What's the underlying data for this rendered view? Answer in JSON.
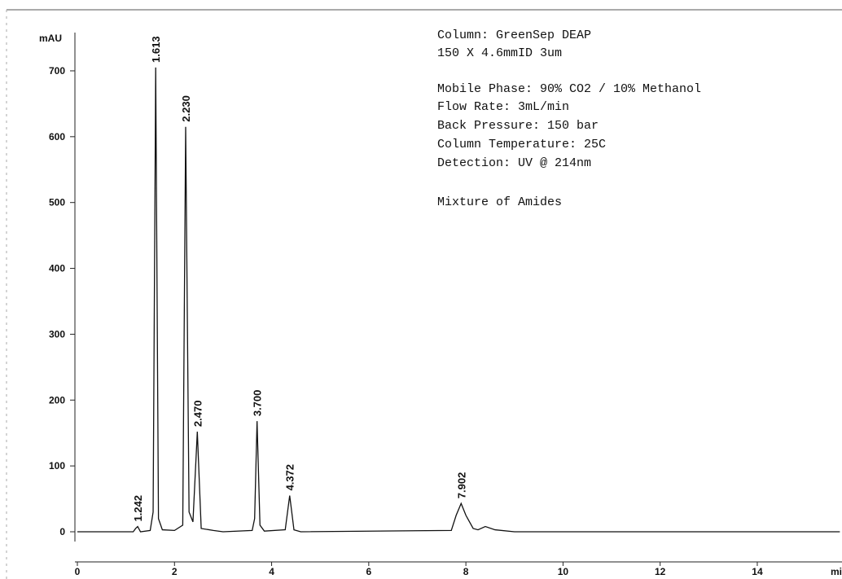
{
  "chart_data": {
    "type": "line",
    "ylabel": "mAU",
    "xlabel": "mi",
    "color": "#111111",
    "x": [
      0,
      1.15,
      1.2,
      1.242,
      1.3,
      1.5,
      1.56,
      1.613,
      1.67,
      1.75,
      2.0,
      2.17,
      2.23,
      2.3,
      2.38,
      2.47,
      2.55,
      2.8,
      3.0,
      3.6,
      3.65,
      3.7,
      3.76,
      3.85,
      4.28,
      4.372,
      4.46,
      4.6,
      7.7,
      7.8,
      7.902,
      8.0,
      8.15,
      8.25,
      8.4,
      8.6,
      9.0,
      15.7
    ],
    "values": [
      0,
      0,
      5,
      8,
      0,
      2,
      30,
      705,
      20,
      3,
      2,
      10,
      615,
      30,
      15,
      152,
      5,
      2,
      0,
      2,
      20,
      168,
      10,
      1,
      3,
      55,
      3,
      0,
      2,
      25,
      43,
      25,
      5,
      3,
      8,
      3,
      0,
      0
    ],
    "peak_labels": [
      1.242,
      1.613,
      {
        "value": 2.23,
        "label": "2.230"
      },
      {
        "value": 2.47,
        "label": "2.470"
      },
      {
        "value": 3.7,
        "label": "3.700"
      },
      4.372,
      7.902
    ],
    "xlim": [
      0,
      15.7
    ],
    "ylim": [
      -45,
      760
    ],
    "xticks": [
      0,
      2,
      4,
      6,
      8,
      10,
      12,
      14
    ],
    "yticks": [
      0,
      100,
      200,
      300,
      400,
      500,
      600,
      700
    ],
    "annotations": [
      "Column: GreenSep DEAP",
      "150 X 4.6mmID 3um",
      "Mobile Phase: 90% CO2 / 10% Methanol",
      "Flow Rate: 3mL/min",
      "Back Pressure: 150 bar",
      "Column Temperature: 25C",
      "Detection: UV @ 214nm",
      "Mixture of Amides"
    ]
  }
}
